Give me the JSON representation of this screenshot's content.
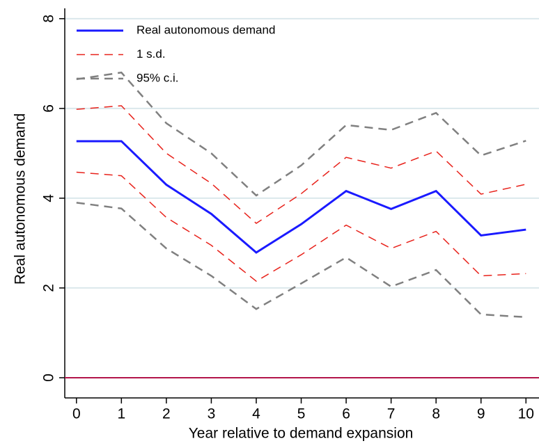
{
  "chart_data": {
    "type": "line",
    "x_label": "Year relative to demand expansion",
    "y_label": "Real autonomous demand",
    "x": [
      0,
      1,
      2,
      3,
      4,
      5,
      6,
      7,
      8,
      9,
      10
    ],
    "series": [
      {
        "name": "Real autonomous demand",
        "color": "#1a1aff",
        "dash": "none",
        "width": 3,
        "values": [
          5.27,
          5.27,
          4.3,
          3.65,
          2.79,
          3.42,
          4.16,
          3.76,
          4.16,
          3.17,
          3.3
        ]
      },
      {
        "name": "1 s.d.",
        "color": "#e8221b",
        "dash": "12 8",
        "width": 1.5,
        "upper": [
          5.98,
          6.06,
          5.0,
          4.33,
          3.44,
          4.1,
          4.91,
          4.67,
          5.05,
          4.09,
          4.31
        ],
        "lower": [
          4.58,
          4.5,
          3.57,
          2.95,
          2.15,
          2.74,
          3.4,
          2.88,
          3.26,
          2.27,
          2.32
        ]
      },
      {
        "name": "95% c.i.",
        "color": "#808080",
        "dash": "12 8",
        "width": 2.5,
        "upper": [
          6.65,
          6.8,
          5.67,
          5.0,
          4.06,
          4.73,
          5.63,
          5.52,
          5.9,
          4.95,
          5.28
        ],
        "lower": [
          3.9,
          3.77,
          2.88,
          2.27,
          1.53,
          2.1,
          2.68,
          2.03,
          2.4,
          1.41,
          1.35
        ]
      }
    ],
    "xlim": [
      -0.26,
      10.29
    ],
    "xticks": [
      0,
      1,
      2,
      3,
      4,
      5,
      6,
      7,
      8,
      9,
      10
    ],
    "ylim": [
      -0.45,
      8.23
    ],
    "yticks": [
      0,
      2,
      4,
      6,
      8
    ],
    "grid": true,
    "grid_color": "#dbe8ec",
    "hline": {
      "value": 0,
      "color": "#b3144a"
    },
    "legend": "top-left"
  }
}
